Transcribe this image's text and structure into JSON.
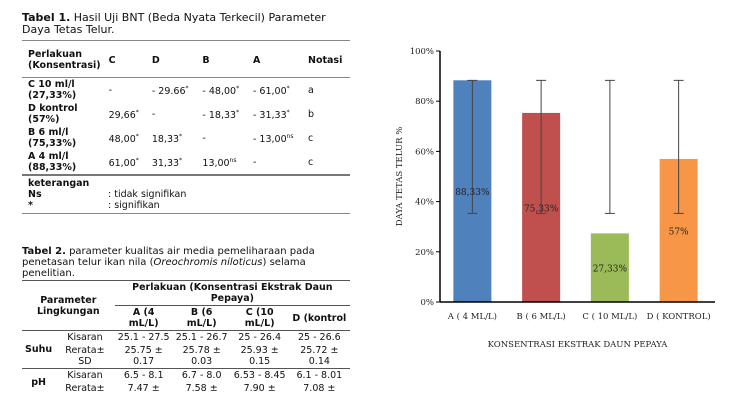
{
  "table1": {
    "caption_bold": "Tabel 1.",
    "caption": " Hasil Uji BNT (Beda Nyata Terkecil) Parameter Daya Tetas Telur.",
    "headers": [
      "Perlakuan (Konsentrasi)",
      "C",
      "D",
      "B",
      "A",
      "Notasi"
    ],
    "rows": [
      {
        "label": "C  10 ml/l (27,33%)",
        "c": "-",
        "d": "- 29.66",
        "d_sup": "*",
        "b": "- 48,00",
        "b_sup": "*",
        "a": "- 61,00",
        "a_sup": "*",
        "notasi": "a"
      },
      {
        "label": "D kontrol (57%)",
        "c": "29,66",
        "c_sup": "*",
        "d": "-",
        "b": "- 18,33",
        "b_sup": "*",
        "a": "- 31,33",
        "a_sup": "*",
        "notasi": "b"
      },
      {
        "label": "B 6 ml/l (75,33%)",
        "c": "48,00",
        "c_sup": "*",
        "d": "18,33",
        "d_sup": "*",
        "b": "-",
        "a": "- 13,00",
        "a_sup": "ns",
        "notasi": "c"
      },
      {
        "label": "A 4 ml/l (88,33%)",
        "c": "61,00",
        "c_sup": "*",
        "d": "31,33",
        "d_sup": "*",
        "b": "13,00",
        "b_sup": "ns",
        "a": "-",
        "notasi": "c"
      }
    ],
    "note_title": "keterangan",
    "notes": [
      {
        "key": "Ns",
        "value": ": tidak signifikan"
      },
      {
        "key": "*",
        "value": ": signifikan"
      }
    ]
  },
  "table2": {
    "caption_bold": "Tabel 2.",
    "caption_pre": " parameter kualitas air media pemeliharaan pada penetasan telur ikan nila (",
    "caption_italic": "Oreochromis niloticus",
    "caption_post": ") selama penelitian.",
    "param_header": "Parameter Lingkungan",
    "group_header": "Perlakuan (Konsentrasi Ekstrak Daun Pepaya)",
    "columns": [
      "A (4 mL/L)",
      "B (6 mL/L)",
      "C (10 mL/L)",
      "D (kontrol"
    ],
    "groups": [
      {
        "name": "Suhu",
        "rows": [
          {
            "label": "Kisaran",
            "values": [
              "25.1 - 27.5",
              "25.1 - 26.7",
              "25 - 26.4",
              "25 - 26.6"
            ]
          },
          {
            "label": "Rerata± SD",
            "values": [
              "25.75 ± 0.17",
              "25.78 ± 0.03",
              "25.93 ± 0.15",
              "25.72 ± 0.14"
            ]
          }
        ]
      },
      {
        "name": "pH",
        "rows": [
          {
            "label": "Kisaran",
            "values": [
              "6.5 - 8.1",
              "6.7 - 8.0",
              "6.53 - 8.45",
              "6.1 - 8.01"
            ]
          },
          {
            "label": "Rerata±",
            "values": [
              "7.47 ±",
              "7.58 ±",
              "7.90 ±",
              "7.08 ±"
            ]
          }
        ]
      }
    ]
  },
  "chart_data": {
    "type": "bar",
    "categories": [
      "A ( 4 ML/L)",
      "B ( 6 ML/L)",
      "C ( 10 ML/L)",
      "D ( KONTROL)"
    ],
    "values": [
      88.33,
      75.33,
      27.33,
      57
    ],
    "data_labels": [
      "88,33%",
      "75,33%",
      "27,33%",
      "57%"
    ],
    "colors": [
      "#4f81bd",
      "#c0504d",
      "#9bbb59",
      "#f79646"
    ],
    "error_bars": [
      [
        35.3,
        88.3
      ],
      [
        35.3,
        88.3
      ],
      [
        35.3,
        88.3
      ],
      [
        35.3,
        88.3
      ]
    ],
    "xlabel": "KONSENTRASI  EKSTRAK DAUN PEPAYA",
    "ylabel": "DAYA TETAS TELUR %",
    "ylim": [
      0,
      100
    ],
    "yticks": [
      "0%",
      "20%",
      "40%",
      "60%",
      "80%",
      "100%"
    ],
    "grid": false,
    "legend": "none"
  }
}
